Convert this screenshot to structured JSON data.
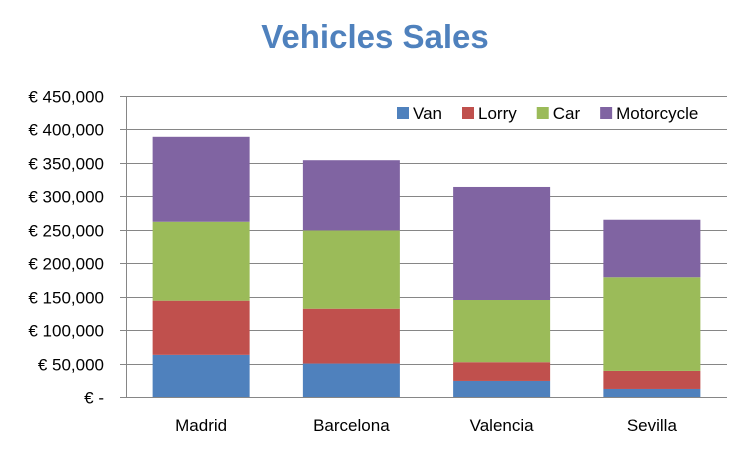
{
  "chart_data": {
    "type": "bar",
    "stacked": true,
    "title": "Vehicles Sales",
    "xlabel": "",
    "ylabel": "",
    "categories": [
      "Madrid",
      "Barcelona",
      "Valencia",
      "Sevilla"
    ],
    "series": [
      {
        "name": "Van",
        "color": "#4F81BD",
        "values": [
          63000,
          50000,
          24000,
          12000
        ]
      },
      {
        "name": "Lorry",
        "color": "#C0504D",
        "values": [
          81000,
          82000,
          28000,
          27000
        ]
      },
      {
        "name": "Car",
        "color": "#9BBB59",
        "values": [
          118000,
          117000,
          93000,
          140000
        ]
      },
      {
        "name": "Motorcycle",
        "color": "#8064A2",
        "values": [
          127000,
          105000,
          169000,
          86000
        ]
      }
    ],
    "ylim": [
      0,
      450000
    ],
    "y_ticks": [
      0,
      50000,
      100000,
      150000,
      200000,
      250000,
      300000,
      350000,
      400000,
      450000
    ],
    "y_tick_labels": [
      "€ -",
      "€ 50,000",
      "€ 100,000",
      "€ 150,000",
      "€ 200,000",
      "€ 250,000",
      "€ 300,000",
      "€ 350,000",
      "€ 400,000",
      "€ 450,000"
    ],
    "grid": true,
    "legend_position": "top-right"
  }
}
